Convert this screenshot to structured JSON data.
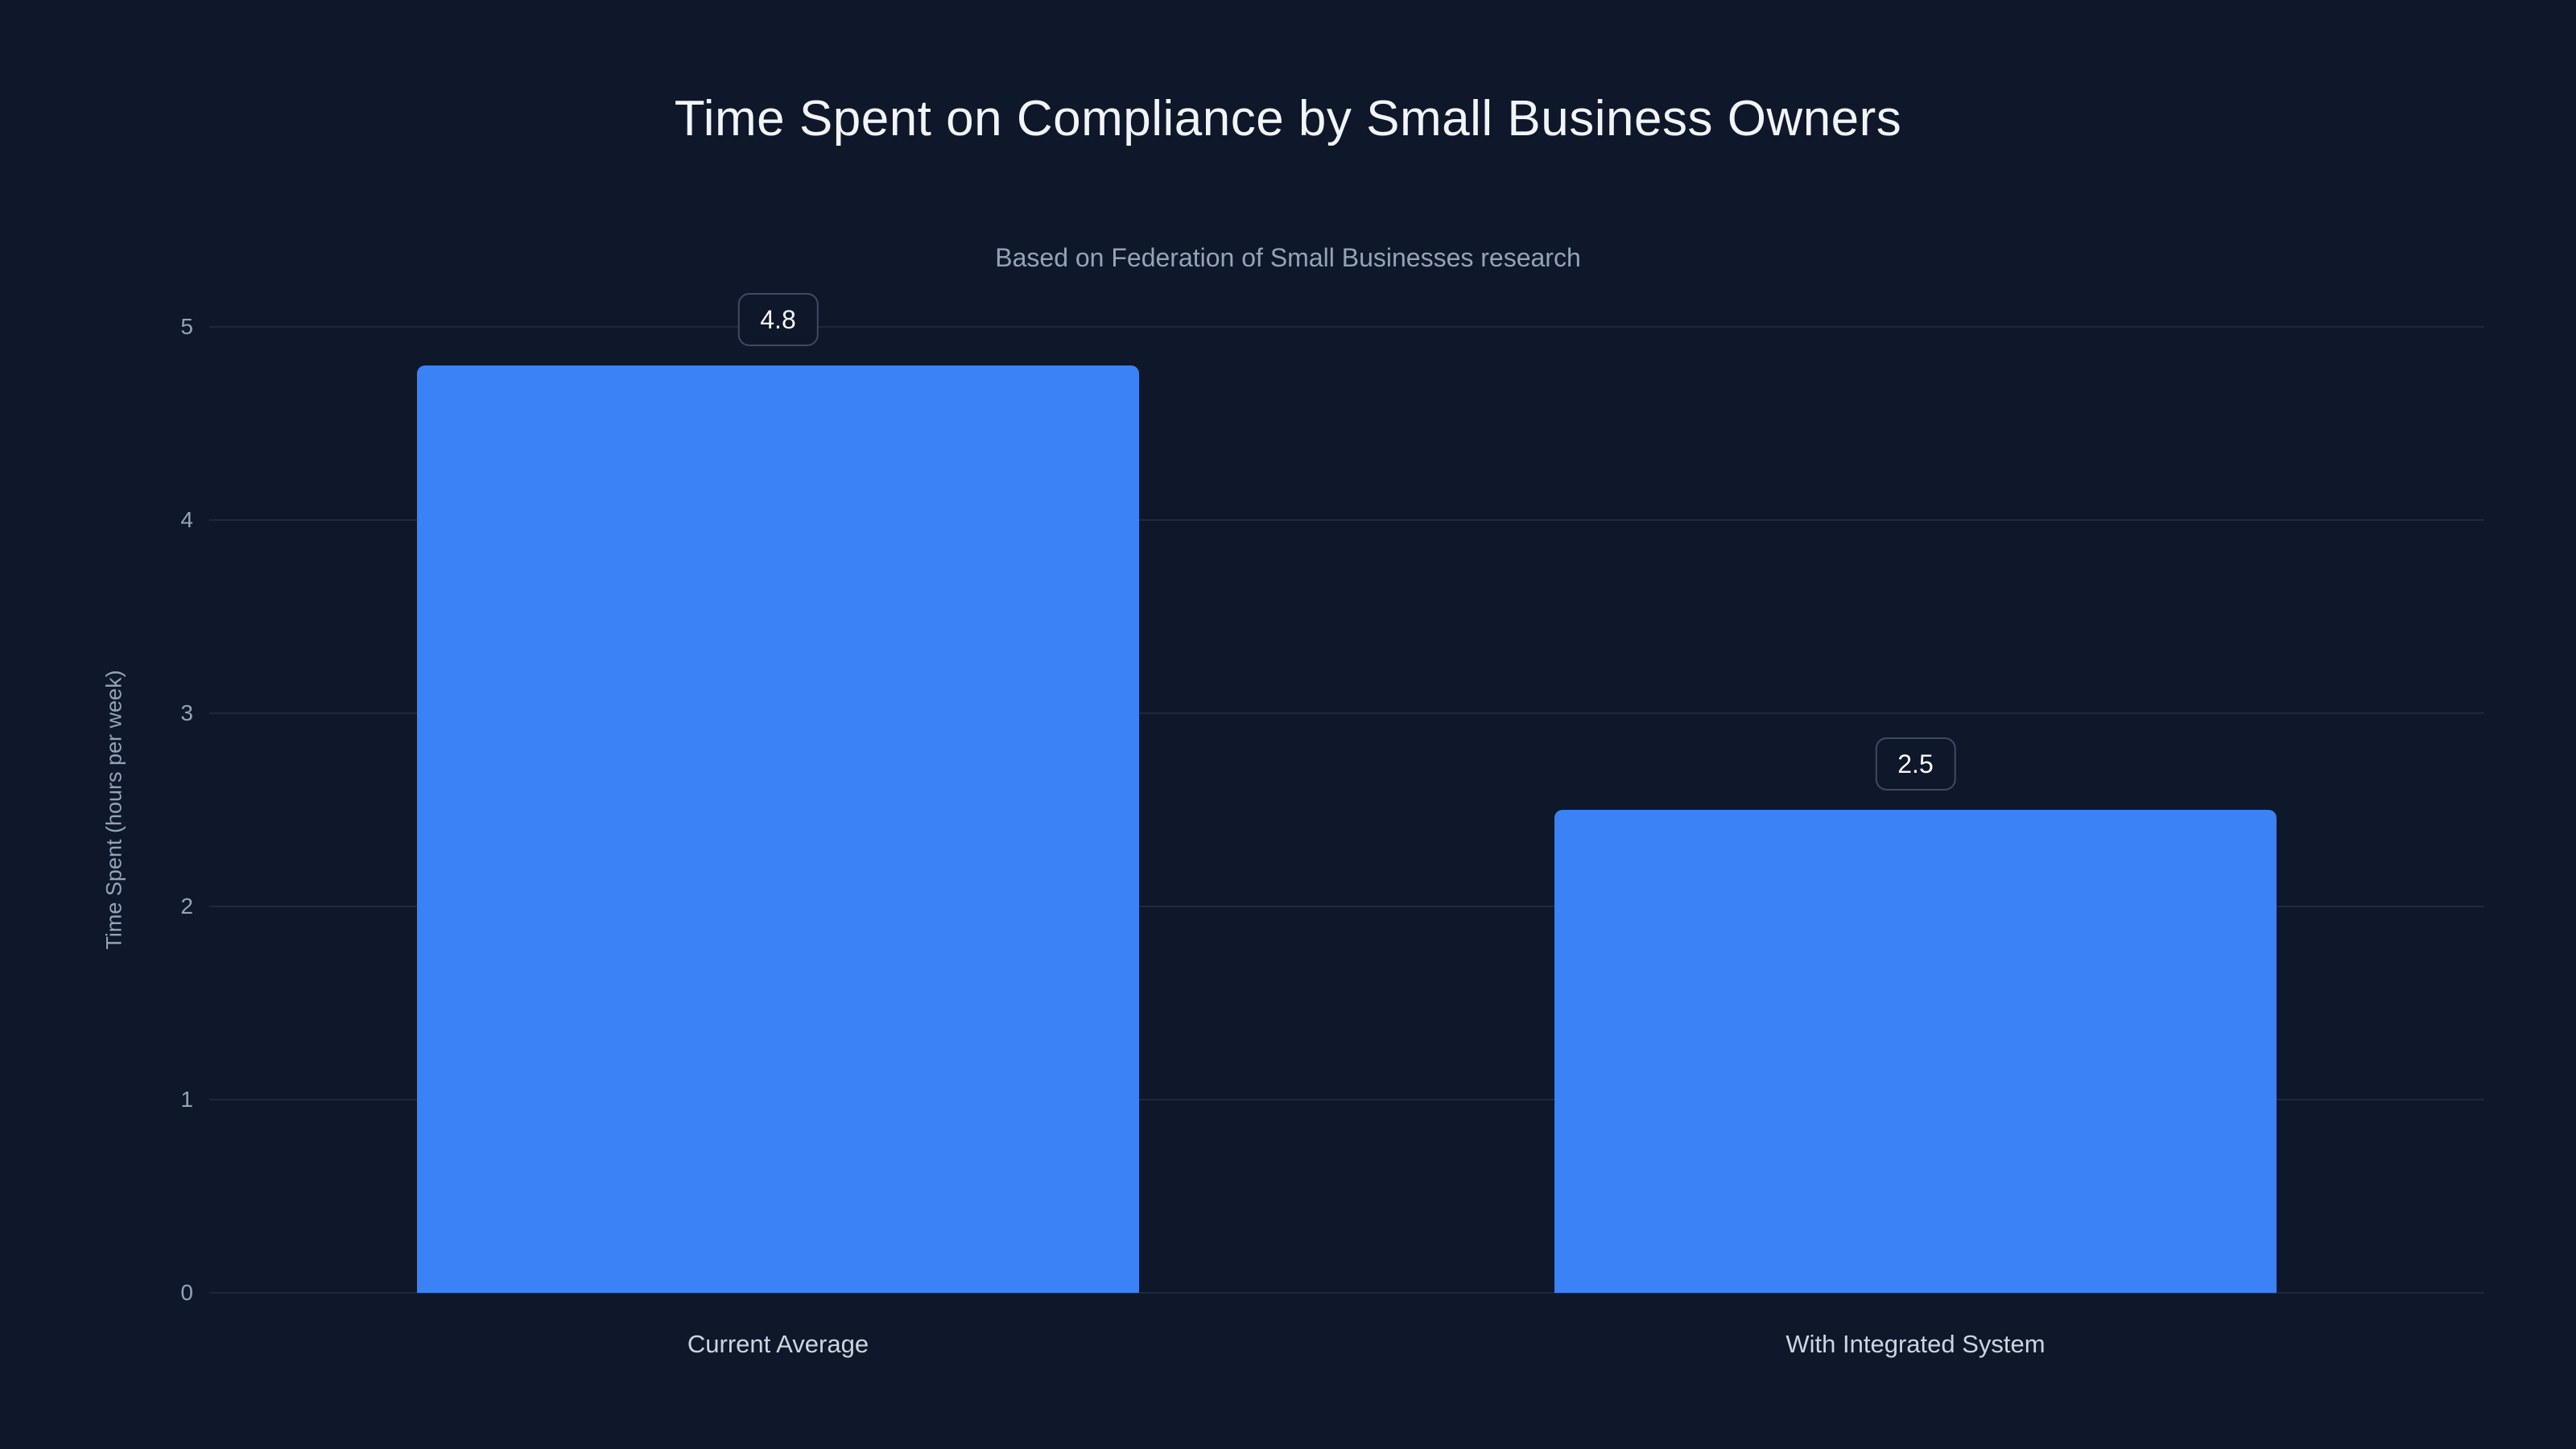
{
  "page": {
    "background": "#0f172a"
  },
  "chart_data": {
    "type": "bar",
    "title": "Time Spent on Compliance by Small Business Owners",
    "subtitle": "Based on Federation of Small Businesses research",
    "categories": [
      "Current Average",
      "With Integrated System"
    ],
    "values": [
      4.8,
      2.5
    ],
    "data_labels": [
      "4.8",
      "2.5"
    ],
    "xlabel": "",
    "ylabel": "Time Spent (hours per week)",
    "ylim": [
      0,
      5
    ],
    "yticks": [
      0,
      1,
      2,
      3,
      4,
      5
    ],
    "grid": true,
    "legend": false,
    "colors": {
      "bar": "#3b82f6",
      "background": "#0f172a",
      "grid": "rgba(148,163,184,0.13)",
      "title": "#f1f5f9",
      "subtitle": "#94a3b8",
      "ticks": "#94a3b8",
      "category": "#cbd5e1",
      "value_badge_border": "#3f4b63",
      "value_badge_text": "#f8fafc"
    }
  }
}
